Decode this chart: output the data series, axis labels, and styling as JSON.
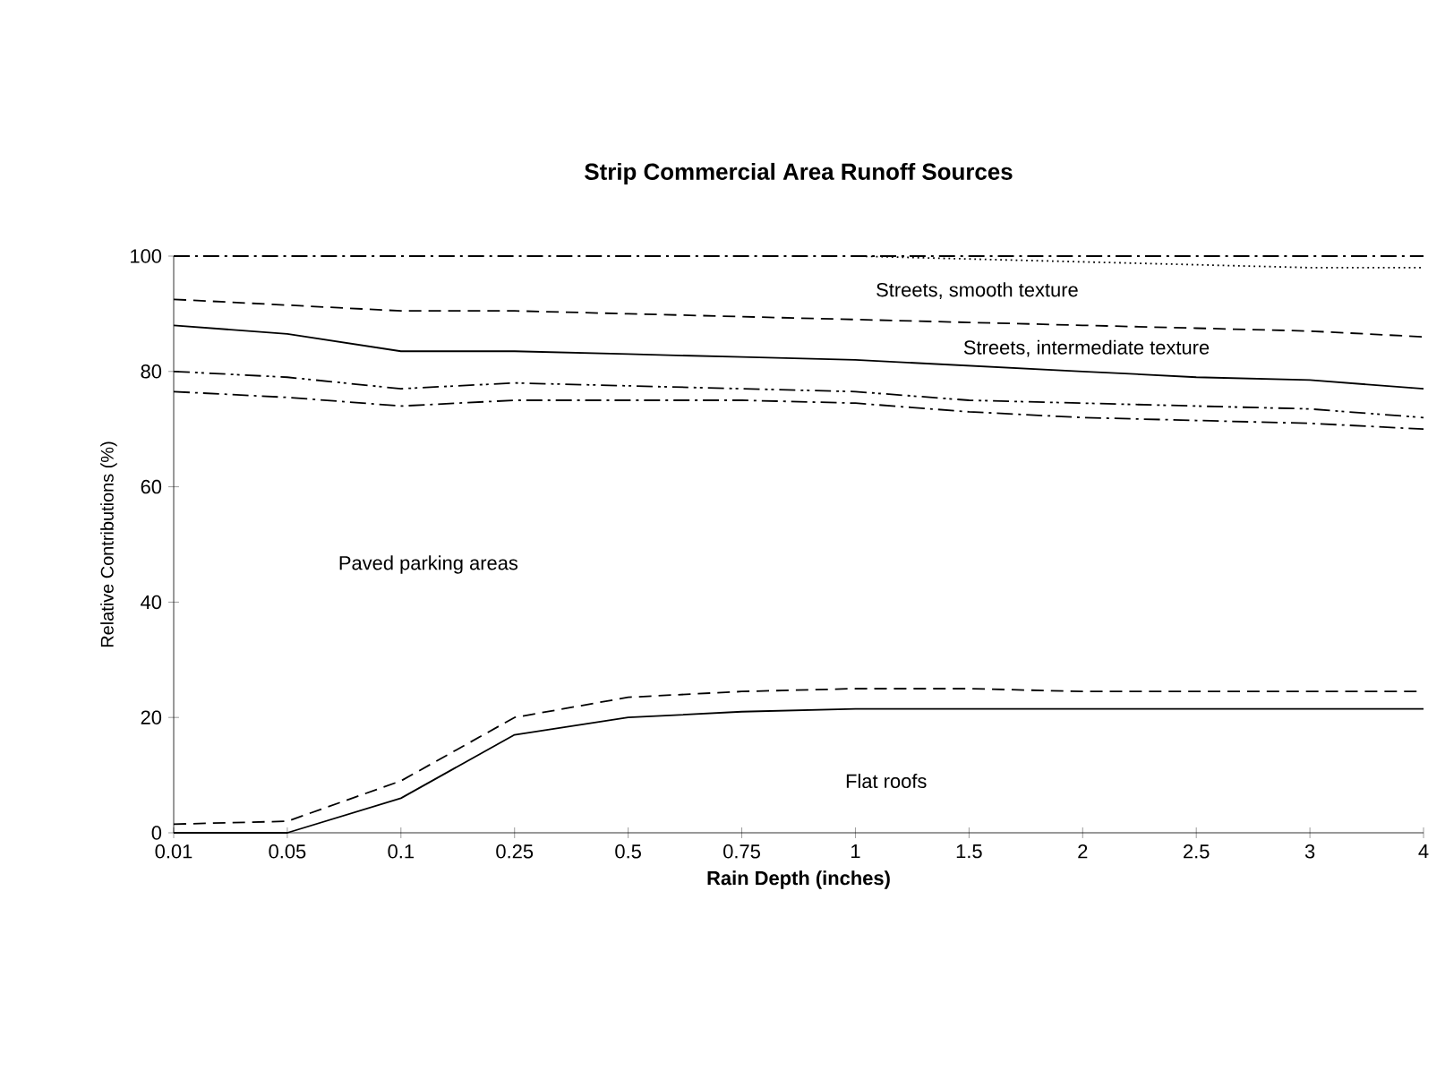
{
  "chart_data": {
    "type": "line",
    "title": "Strip Commercial Area Runoff Sources",
    "xlabel": "Rain Depth (inches)",
    "ylabel": "Relative Contributions (%)",
    "categories": [
      "0.01",
      "0.05",
      "0.1",
      "0.25",
      "0.5",
      "0.75",
      "1",
      "1.5",
      "2",
      "2.5",
      "3",
      "4"
    ],
    "ylim": [
      0,
      100
    ],
    "yticks": [
      0,
      20,
      40,
      60,
      80,
      100
    ],
    "marker": "none",
    "series": [
      {
        "color": "#000000",
        "line_style": "solid",
        "values": [
          0,
          0,
          6,
          17,
          20,
          21,
          21.5,
          21.5,
          21.5,
          21.5,
          21.5,
          21.5
        ]
      },
      {
        "color": "#000000",
        "line_style": "dashed",
        "values": [
          1.5,
          2,
          9,
          20,
          23.5,
          24.5,
          25,
          25,
          24.5,
          24.5,
          24.5,
          24.5
        ]
      },
      {
        "color": "#000000",
        "line_style": "dashdot",
        "values": [
          76.5,
          75.5,
          74,
          75,
          75,
          75,
          74.5,
          73,
          72,
          71.5,
          71,
          70
        ]
      },
      {
        "color": "#000000",
        "line_style": "dashdotdot",
        "values": [
          80,
          79,
          77,
          78,
          77.5,
          77,
          76.5,
          75,
          74.5,
          74,
          73.5,
          72
        ]
      },
      {
        "color": "#000000",
        "line_style": "solid",
        "values": [
          88,
          86.5,
          83.5,
          83.5,
          83,
          82.5,
          82,
          81,
          80,
          79,
          78.5,
          77
        ]
      },
      {
        "color": "#000000",
        "line_style": "dashed",
        "values": [
          92.5,
          91.5,
          90.5,
          90.5,
          90,
          89.5,
          89,
          88.5,
          88,
          87.5,
          87,
          86
        ]
      },
      {
        "color": "#000000",
        "line_style": "dotted",
        "values": [
          null,
          null,
          null,
          null,
          null,
          null,
          100,
          99.5,
          99,
          98.5,
          98,
          98
        ]
      },
      {
        "color": "#000000",
        "line_style": "dashdot",
        "values": [
          100,
          100,
          100,
          100,
          100,
          100,
          100,
          100,
          100,
          100,
          100,
          100
        ]
      }
    ],
    "annotations": [
      "Streets, smooth texture",
      "Streets, intermediate texture",
      "Paved parking areas",
      "Flat roofs"
    ]
  }
}
